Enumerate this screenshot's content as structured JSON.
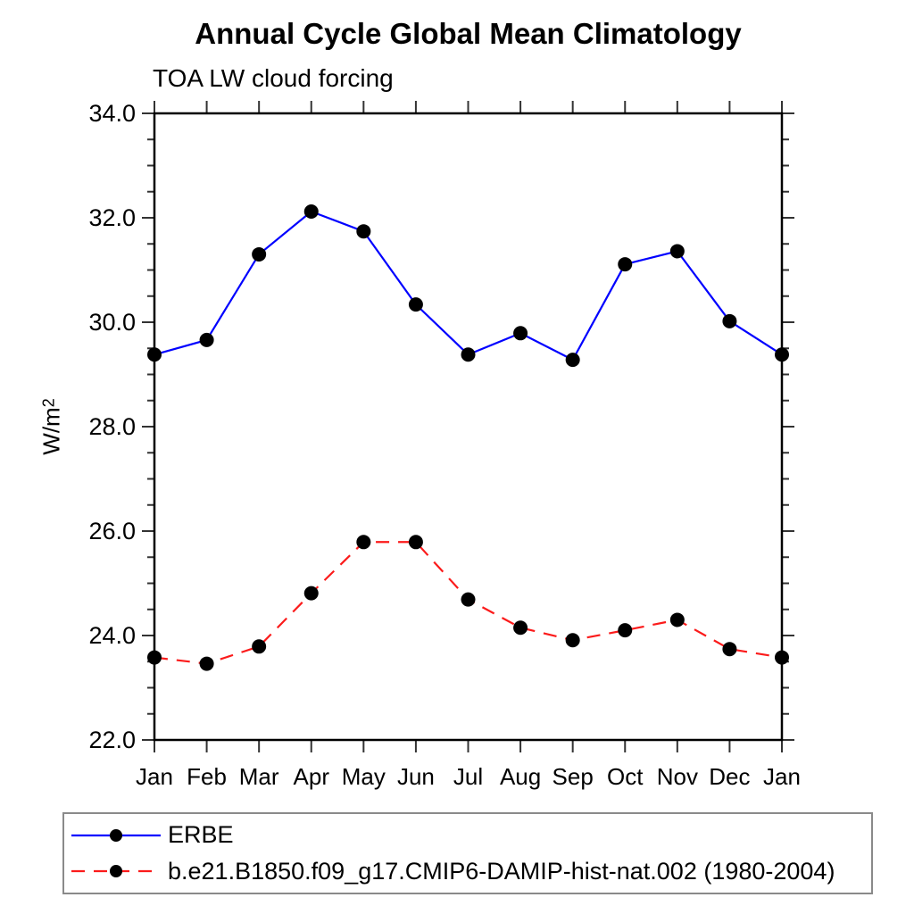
{
  "chart_data": {
    "type": "line",
    "title": "Annual Cycle Global Mean Climatology",
    "subtitle": "TOA LW cloud forcing",
    "ylabel_base": "W/m",
    "ylabel_exponent": "2",
    "categories": [
      "Jan",
      "Feb",
      "Mar",
      "Apr",
      "May",
      "Jun",
      "Jul",
      "Aug",
      "Sep",
      "Oct",
      "Nov",
      "Dec",
      "Jan"
    ],
    "ylim": [
      22.0,
      34.0
    ],
    "ytick_interval": 2.0,
    "yminor_interval": 0.5,
    "ytick_labels": [
      "22.0",
      "24.0",
      "26.0",
      "28.0",
      "30.0",
      "32.0",
      "34.0"
    ],
    "grid": false,
    "legend_position": "bottom-left",
    "axis_color": "#000000",
    "marker_shape": "filled-circle",
    "series": [
      {
        "name": "ERBE",
        "line_color": "#0000ff",
        "line_style": "solid",
        "marker_color": "#000000",
        "values": [
          29.38,
          29.66,
          31.3,
          32.12,
          31.74,
          30.34,
          29.38,
          29.79,
          29.28,
          31.11,
          31.36,
          30.02,
          29.38
        ]
      },
      {
        "name": "b.e21.B1850.f09_g17.CMIP6-DAMIP-hist-nat.002 (1980-2004)",
        "line_color": "#fb1b1b",
        "line_style": "dashed",
        "marker_color": "#000000",
        "values": [
          23.58,
          23.46,
          23.79,
          24.81,
          25.79,
          25.79,
          24.69,
          24.15,
          23.91,
          24.1,
          24.3,
          23.74,
          23.58
        ]
      }
    ]
  }
}
